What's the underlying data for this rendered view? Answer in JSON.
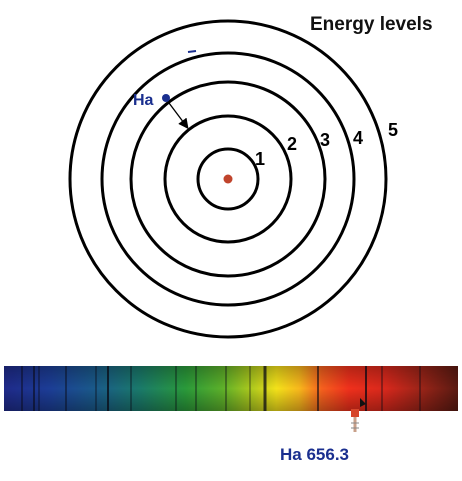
{
  "title": "Energy levels",
  "levels": [
    "1",
    "2",
    "3",
    "4",
    "5"
  ],
  "transition_label": "Ha",
  "spectral_line_label": "Ha 656.3",
  "colors": {
    "orbit": "#000000",
    "nucleus": "#c0442c",
    "electron": "#1a2f8f",
    "label_blue": "#1a2f8f",
    "marker": "#d6452a"
  }
}
